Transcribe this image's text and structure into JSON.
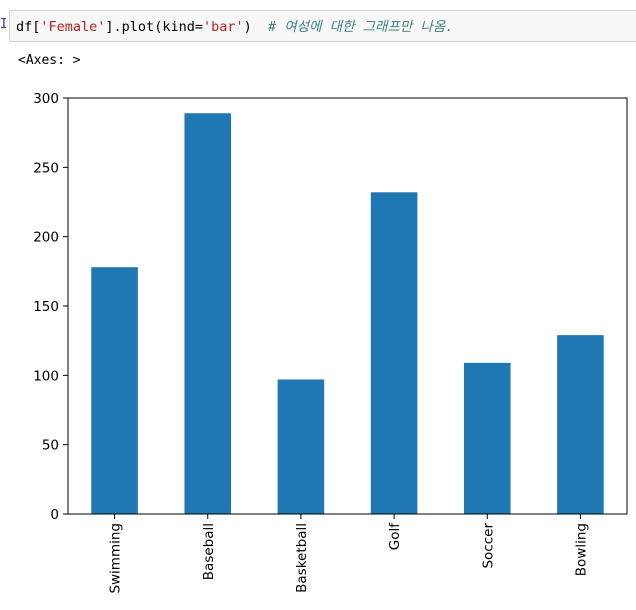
{
  "cell": {
    "prompt": "In",
    "code": {
      "prefix": "df[",
      "column_string": "'Female'",
      "method": "].plot(kind=",
      "kind_string": "'bar'",
      "close": ")  ",
      "comment": "# 여성에 대한 그래프만 나옴."
    },
    "output_repr": "<Axes: >"
  },
  "colors": {
    "bar": "#1f77b4",
    "string": "#ba2121",
    "comment": "#408080",
    "cell_background": "#f7f7f7"
  },
  "chart_data": {
    "type": "bar",
    "categories": [
      "Swimming",
      "Baseball",
      "Basketball",
      "Golf",
      "Soccer",
      "Bowling"
    ],
    "values": [
      178,
      289,
      97,
      232,
      109,
      129
    ],
    "ylim": [
      0,
      300
    ],
    "yticks": [
      0,
      50,
      100,
      150,
      200,
      250,
      300
    ],
    "title": "",
    "xlabel": "",
    "ylabel": "",
    "grid": false,
    "xtick_rotation": "vertical"
  }
}
